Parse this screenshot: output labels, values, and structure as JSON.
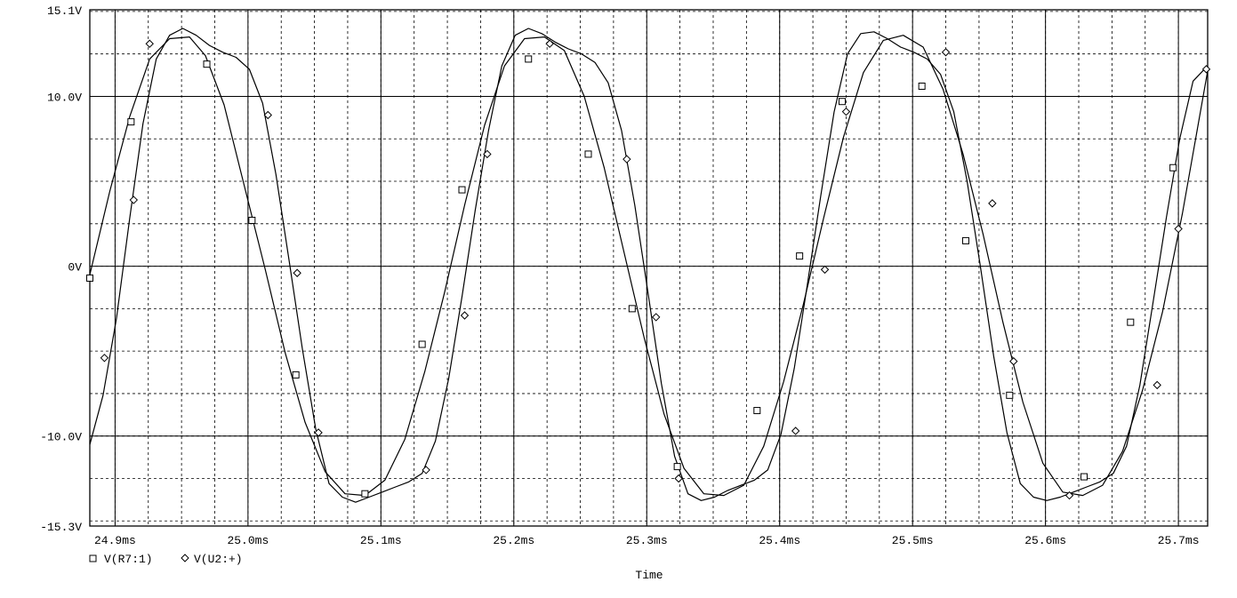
{
  "chart_data": {
    "type": "line",
    "xlabel": "Time",
    "ylabel": "",
    "xlim": [
      24.881,
      25.722
    ],
    "ylim": [
      -15.3,
      15.1
    ],
    "x_unit": "ms",
    "y_unit": "V",
    "grid": true,
    "legend_position": "bottom-left",
    "x_ticks": [
      {
        "value": 24.9,
        "label": "24.9ms"
      },
      {
        "value": 25.0,
        "label": "25.0ms"
      },
      {
        "value": 25.1,
        "label": "25.1ms"
      },
      {
        "value": 25.2,
        "label": "25.2ms"
      },
      {
        "value": 25.3,
        "label": "25.3ms"
      },
      {
        "value": 25.4,
        "label": "25.4ms"
      },
      {
        "value": 25.5,
        "label": "25.5ms"
      },
      {
        "value": 25.6,
        "label": "25.6ms"
      },
      {
        "value": 25.7,
        "label": "25.7ms"
      }
    ],
    "y_ticks": [
      {
        "value": 15.1,
        "label": "15.1V"
      },
      {
        "value": 10.0,
        "label": "10.0V"
      },
      {
        "value": 0,
        "label": "0V"
      },
      {
        "value": -10.0,
        "label": "-10.0V"
      },
      {
        "value": -15.3,
        "label": "-15.3V"
      }
    ],
    "series": [
      {
        "name": "V(R7:1)",
        "marker": "square",
        "x": [
          24.881,
          24.896,
          24.911,
          24.926,
          24.941,
          24.956,
          24.968,
          24.982,
          24.997,
          25.013,
          25.028,
          25.043,
          25.058,
          25.073,
          25.088,
          25.103,
          25.118,
          25.133,
          25.148,
          25.163,
          25.178,
          25.193,
          25.208,
          25.223,
          25.238,
          25.253,
          25.268,
          25.283,
          25.298,
          25.313,
          25.328,
          25.343,
          25.358,
          25.373,
          25.388,
          25.403,
          25.418,
          25.433,
          25.448,
          25.463,
          25.478,
          25.493,
          25.508,
          25.523,
          25.538,
          25.553,
          25.568,
          25.583,
          25.598,
          25.613,
          25.628,
          25.643,
          25.658,
          25.673,
          25.688,
          25.703,
          25.722
        ],
        "y": [
          -0.5,
          4.4,
          8.8,
          12.2,
          13.4,
          13.5,
          12.4,
          9.5,
          4.8,
          -0.2,
          -5.1,
          -9.2,
          -12.1,
          -13.4,
          -13.5,
          -12.6,
          -10.2,
          -6.2,
          -1.5,
          3.6,
          8.3,
          11.8,
          13.4,
          13.5,
          12.7,
          10.0,
          5.8,
          0.8,
          -4.2,
          -8.7,
          -11.9,
          -13.4,
          -13.5,
          -12.9,
          -10.6,
          -6.8,
          -2.2,
          2.8,
          7.6,
          11.4,
          13.3,
          13.6,
          12.9,
          10.4,
          6.6,
          1.9,
          -3.3,
          -8.0,
          -11.6,
          -13.3,
          -13.5,
          -12.9,
          -10.9,
          -7.3,
          -2.7,
          3.1,
          11.5
        ],
        "markers": [
          {
            "x": 24.881,
            "y": -0.7
          },
          {
            "x": 24.912,
            "y": 8.5
          },
          {
            "x": 24.969,
            "y": 11.9
          },
          {
            "x": 25.003,
            "y": 2.7
          },
          {
            "x": 25.036,
            "y": -6.4
          },
          {
            "x": 25.088,
            "y": -13.4
          },
          {
            "x": 25.131,
            "y": -4.6
          },
          {
            "x": 25.161,
            "y": 4.5
          },
          {
            "x": 25.211,
            "y": 12.2
          },
          {
            "x": 25.256,
            "y": 6.6
          },
          {
            "x": 25.289,
            "y": -2.5
          },
          {
            "x": 25.323,
            "y": -11.8
          },
          {
            "x": 25.383,
            "y": -8.5
          },
          {
            "x": 25.415,
            "y": 0.6
          },
          {
            "x": 25.447,
            "y": 9.7
          },
          {
            "x": 25.507,
            "y": 10.6
          },
          {
            "x": 25.54,
            "y": 1.5
          },
          {
            "x": 25.573,
            "y": -7.6
          },
          {
            "x": 25.629,
            "y": -12.4
          },
          {
            "x": 25.664,
            "y": -3.3
          },
          {
            "x": 25.696,
            "y": 5.8
          }
        ]
      },
      {
        "name": "V(U2:+)",
        "marker": "diamond",
        "x": [
          24.881,
          24.891,
          24.901,
          24.911,
          24.921,
          24.931,
          24.941,
          24.951,
          24.961,
          24.971,
          24.981,
          24.991,
          25.001,
          25.011,
          25.021,
          25.031,
          25.041,
          25.051,
          25.061,
          25.071,
          25.081,
          25.091,
          25.101,
          25.111,
          25.121,
          25.131,
          25.141,
          25.151,
          25.161,
          25.171,
          25.181,
          25.191,
          25.201,
          25.211,
          25.221,
          25.231,
          25.241,
          25.251,
          25.261,
          25.271,
          25.281,
          25.291,
          25.301,
          25.311,
          25.321,
          25.331,
          25.341,
          25.351,
          25.361,
          25.371,
          25.381,
          25.391,
          25.401,
          25.411,
          25.421,
          25.431,
          25.441,
          25.451,
          25.461,
          25.471,
          25.481,
          25.491,
          25.501,
          25.511,
          25.521,
          25.531,
          25.541,
          25.551,
          25.561,
          25.571,
          25.581,
          25.591,
          25.601,
          25.611,
          25.621,
          25.631,
          25.641,
          25.651,
          25.661,
          25.671,
          25.681,
          25.691,
          25.701,
          25.711,
          25.722
        ],
        "y": [
          -10.5,
          -7.6,
          -3.1,
          2.8,
          8.4,
          12.2,
          13.6,
          14.0,
          13.6,
          13.0,
          12.6,
          12.3,
          11.6,
          9.6,
          5.4,
          0.3,
          -4.9,
          -9.6,
          -12.8,
          -13.6,
          -13.9,
          -13.6,
          -13.3,
          -13.0,
          -12.7,
          -12.2,
          -10.3,
          -6.6,
          -1.8,
          3.3,
          8.0,
          11.8,
          13.6,
          14.0,
          13.7,
          13.2,
          12.8,
          12.5,
          12.0,
          10.8,
          8.0,
          3.6,
          -1.6,
          -6.9,
          -11.2,
          -13.4,
          -13.8,
          -13.6,
          -13.2,
          -12.9,
          -12.6,
          -12.0,
          -9.9,
          -6.0,
          -1.0,
          4.2,
          9.1,
          12.5,
          13.7,
          13.8,
          13.4,
          12.9,
          12.6,
          12.2,
          11.3,
          9.1,
          5.0,
          0.0,
          -5.3,
          -9.8,
          -12.8,
          -13.6,
          -13.8,
          -13.6,
          -13.3,
          -13.0,
          -12.7,
          -12.2,
          -10.6,
          -7.0,
          -2.1,
          2.9,
          7.5,
          10.9,
          11.8
        ],
        "markers": [
          {
            "x": 24.892,
            "y": -5.4
          },
          {
            "x": 24.914,
            "y": 3.9
          },
          {
            "x": 24.926,
            "y": 13.1
          },
          {
            "x": 25.015,
            "y": 8.9
          },
          {
            "x": 25.037,
            "y": -0.4
          },
          {
            "x": 25.053,
            "y": -9.8
          },
          {
            "x": 25.134,
            "y": -12.0
          },
          {
            "x": 25.163,
            "y": -2.9
          },
          {
            "x": 25.18,
            "y": 6.6
          },
          {
            "x": 25.227,
            "y": 13.1
          },
          {
            "x": 25.285,
            "y": 6.3
          },
          {
            "x": 25.307,
            "y": -3.0
          },
          {
            "x": 25.324,
            "y": -12.5
          },
          {
            "x": 25.412,
            "y": -9.7
          },
          {
            "x": 25.434,
            "y": -0.2
          },
          {
            "x": 25.45,
            "y": 9.1
          },
          {
            "x": 25.525,
            "y": 12.6
          },
          {
            "x": 25.56,
            "y": 3.7
          },
          {
            "x": 25.576,
            "y": -5.6
          },
          {
            "x": 25.618,
            "y": -13.5
          },
          {
            "x": 25.684,
            "y": -7.0
          },
          {
            "x": 25.7,
            "y": 2.2
          },
          {
            "x": 25.721,
            "y": 11.6
          }
        ]
      }
    ]
  }
}
